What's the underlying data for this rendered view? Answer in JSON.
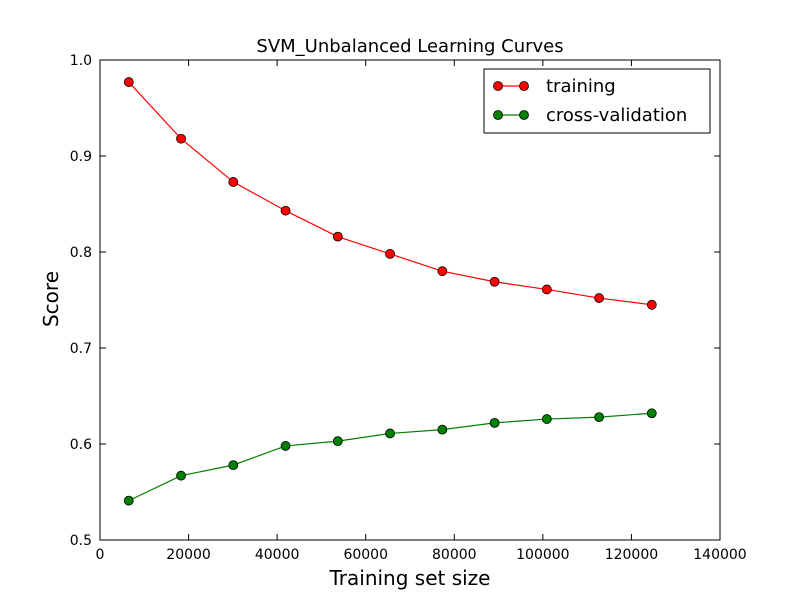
{
  "chart_data": {
    "type": "line",
    "title": "SVM_Unbalanced Learning Curves",
    "xlabel": "Training set size",
    "ylabel": "Score",
    "xlim": [
      0,
      140000
    ],
    "ylim": [
      0.5,
      1.0
    ],
    "x_ticks": [
      0,
      20000,
      40000,
      60000,
      80000,
      100000,
      120000,
      140000
    ],
    "y_ticks": [
      0.5,
      0.6,
      0.7,
      0.8,
      0.9,
      1.0
    ],
    "x_tick_labels": [
      "0",
      "20000",
      "40000",
      "60000",
      "80000",
      "100000",
      "120000",
      "140000"
    ],
    "y_tick_labels": [
      "0.5",
      "0.6",
      "0.7",
      "0.8",
      "0.9",
      "1.0"
    ],
    "grid": false,
    "legend_position": "top-right",
    "x": [
      6500,
      18300,
      30100,
      41900,
      53700,
      65500,
      77300,
      89100,
      100900,
      112700,
      124600
    ],
    "series": [
      {
        "name": "training",
        "color": "#ff0000",
        "marker": "circle",
        "values": [
          0.977,
          0.918,
          0.873,
          0.843,
          0.816,
          0.798,
          0.78,
          0.769,
          0.761,
          0.752,
          0.745
        ]
      },
      {
        "name": "cross-validation",
        "color": "#008000",
        "marker": "circle",
        "values": [
          0.541,
          0.567,
          0.578,
          0.598,
          0.603,
          0.611,
          0.615,
          0.622,
          0.626,
          0.628,
          0.632
        ]
      }
    ]
  }
}
